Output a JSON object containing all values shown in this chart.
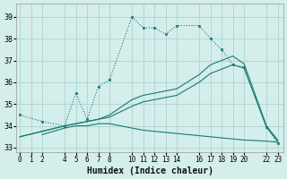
{
  "xlabel": "Humidex (Indice chaleur)",
  "bg_color": "#d4eeeb",
  "grid_color": "#b0d8d4",
  "line_color": "#1a7a6e",
  "ylim": [
    32.8,
    39.6
  ],
  "xlim": [
    -0.3,
    23.5
  ],
  "yticks": [
    33,
    34,
    35,
    36,
    37,
    38,
    39
  ],
  "xticks": [
    0,
    1,
    2,
    4,
    5,
    6,
    7,
    8,
    10,
    11,
    12,
    13,
    14,
    16,
    17,
    18,
    19,
    20,
    22,
    23
  ],
  "curve1_x": [
    0,
    2,
    4,
    5,
    6,
    7,
    8,
    10,
    11,
    12,
    13,
    14,
    16,
    17,
    18,
    19,
    20,
    22,
    23
  ],
  "curve1_y": [
    34.5,
    34.2,
    34.0,
    35.5,
    34.3,
    35.8,
    36.1,
    39.0,
    38.5,
    38.5,
    38.2,
    38.6,
    38.6,
    38.0,
    37.5,
    36.8,
    36.7,
    33.95,
    33.2
  ],
  "curve2_x": [
    0,
    4,
    5,
    6,
    7,
    8,
    10,
    11,
    12,
    13,
    14,
    16,
    17,
    18,
    19,
    20,
    22,
    23
  ],
  "curve2_y": [
    33.5,
    34.0,
    34.1,
    34.2,
    34.3,
    34.4,
    34.9,
    35.1,
    35.2,
    35.3,
    35.4,
    36.0,
    36.4,
    36.6,
    36.8,
    36.65,
    33.95,
    33.3
  ],
  "curve3_x": [
    0,
    4,
    5,
    6,
    7,
    8,
    10,
    11,
    12,
    13,
    14,
    16,
    17,
    18,
    19,
    20,
    22,
    23
  ],
  "curve3_y": [
    33.5,
    34.0,
    34.1,
    34.2,
    34.3,
    34.5,
    35.2,
    35.4,
    35.5,
    35.6,
    35.7,
    36.35,
    36.8,
    37.0,
    37.2,
    36.85,
    34.0,
    33.35
  ],
  "curve4_x": [
    2,
    4,
    5,
    6,
    7,
    8,
    10,
    11,
    12,
    13,
    14,
    16,
    17,
    18,
    19,
    20,
    22,
    23
  ],
  "curve4_y": [
    33.6,
    33.9,
    34.0,
    34.0,
    34.1,
    34.1,
    33.9,
    33.8,
    33.75,
    33.7,
    33.65,
    33.55,
    33.5,
    33.45,
    33.4,
    33.35,
    33.3,
    33.25
  ]
}
